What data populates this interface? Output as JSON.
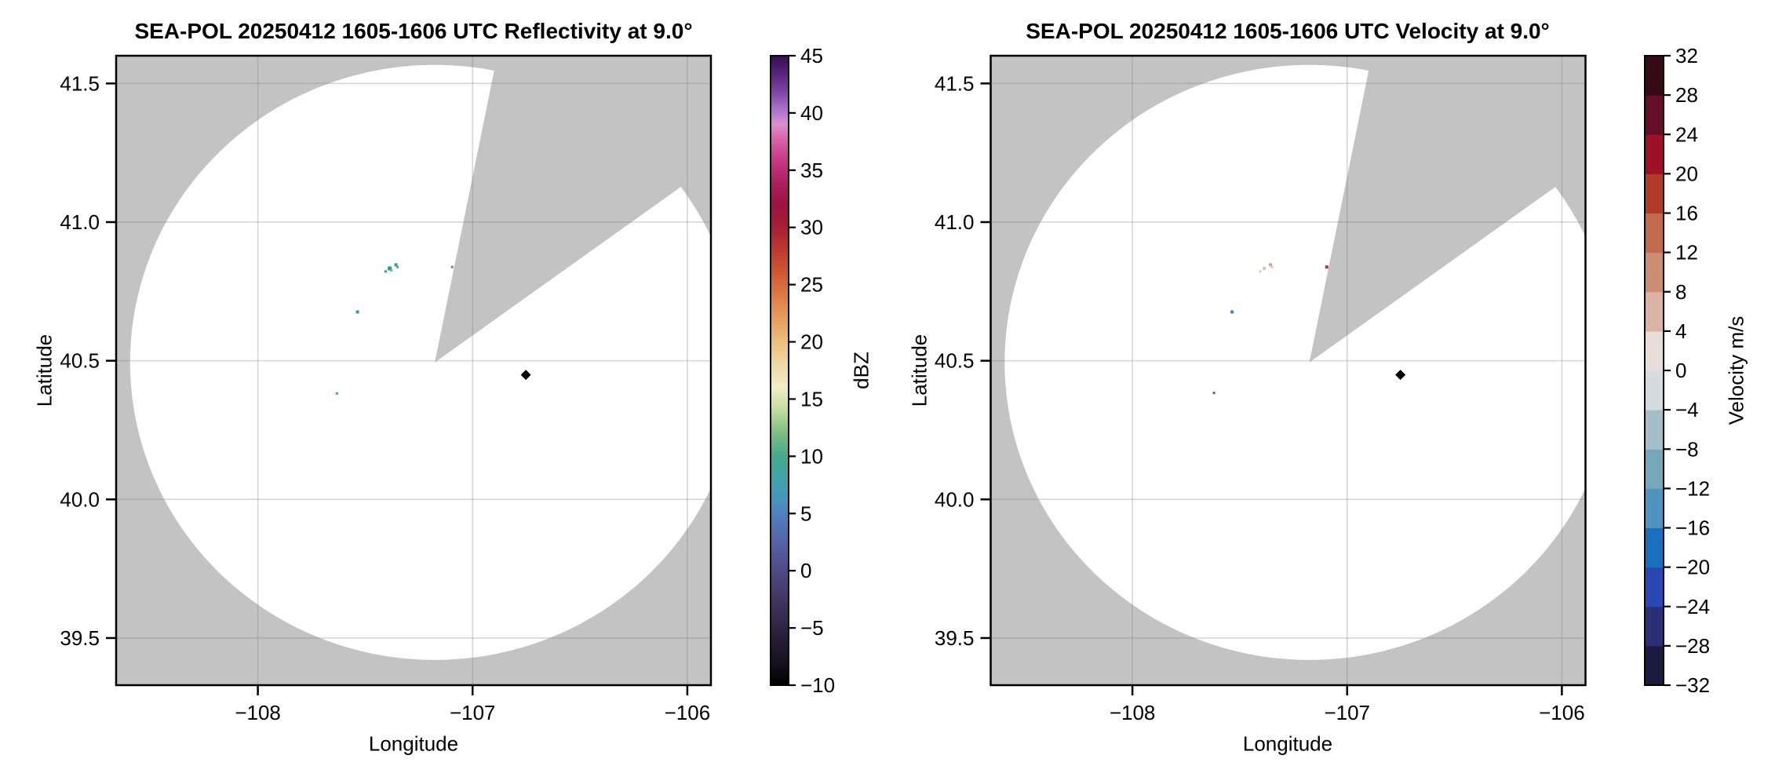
{
  "page": {
    "background": "#ffffff"
  },
  "chart_data": [
    {
      "type": "radar_ppi_pcolormesh",
      "title": "SEA-POL 20250412 1605-1606 UTC Reflectivity at 9.0°",
      "xlabel": "Longitude",
      "ylabel": "Latitude",
      "xlim": [
        -108.66,
        -105.89
      ],
      "ylim": [
        39.33,
        41.6
      ],
      "grid": true,
      "background_color": "#c3c3c3",
      "scanned_area_color": "#ffffff",
      "gridline_color": "rgba(120,120,120,0.30)",
      "xticks": {
        "values": [
          -108,
          -107,
          -106
        ],
        "labels": [
          "−108",
          "−107",
          "−106"
        ]
      },
      "yticks": {
        "values": [
          41.5,
          41.0,
          40.5,
          40.0,
          39.5
        ],
        "labels": [
          "41.5",
          "41.0",
          "40.5",
          "40.0",
          "39.5"
        ]
      },
      "radar": {
        "center_lon": -107.176,
        "center_lat": 40.494,
        "radius_lon_deg": 1.419,
        "radius_lat_deg": 1.073,
        "blocked_sector_azimuth_deg": [
          11.5,
          54.5
        ]
      },
      "colorbar": {
        "label": "dBZ",
        "min": -10,
        "max": 45,
        "style": "continuous",
        "tick_values": [
          45,
          40,
          35,
          30,
          25,
          20,
          15,
          10,
          5,
          0,
          -5,
          -10
        ],
        "tick_labels": [
          "45",
          "40",
          "35",
          "30",
          "25",
          "20",
          "15",
          "10",
          "5",
          "0",
          "−5",
          "−10"
        ],
        "gradient_stops": [
          [
            -10,
            "#000000"
          ],
          [
            -8,
            "#171120"
          ],
          [
            -6,
            "#271d36"
          ],
          [
            -4,
            "#372b50"
          ],
          [
            -2,
            "#453a6a"
          ],
          [
            0,
            "#4e4a86"
          ],
          [
            2,
            "#555da2"
          ],
          [
            4,
            "#5274ba"
          ],
          [
            6,
            "#4792c0"
          ],
          [
            8,
            "#3fa3aa"
          ],
          [
            10,
            "#45aa8e"
          ],
          [
            12,
            "#7bbd80"
          ],
          [
            14,
            "#c1dc9c"
          ],
          [
            16,
            "#f0eec8"
          ],
          [
            18,
            "#efd9a4"
          ],
          [
            20,
            "#ecbf7e"
          ],
          [
            22,
            "#e59e5e"
          ],
          [
            24,
            "#dd7b46"
          ],
          [
            26,
            "#d05834"
          ],
          [
            28,
            "#bd3a2c"
          ],
          [
            30,
            "#a81f36"
          ],
          [
            32,
            "#9c1342"
          ],
          [
            34,
            "#b02062"
          ],
          [
            36,
            "#c93a88"
          ],
          [
            38,
            "#da6cb4"
          ],
          [
            39,
            "#d990cc"
          ],
          [
            40,
            "#b379d0"
          ],
          [
            42,
            "#7a40a2"
          ],
          [
            44,
            "#4c1a6c"
          ],
          [
            45,
            "#381050"
          ]
        ]
      },
      "echoes": [
        {
          "lon": -107.405,
          "lat": 40.822,
          "color": "#2f9c8e",
          "size": 3
        },
        {
          "lon": -107.386,
          "lat": 40.833,
          "color": "#2a9a86",
          "size": 5
        },
        {
          "lon": -107.378,
          "lat": 40.826,
          "color": "#6fb3c8",
          "size": 3
        },
        {
          "lon": -107.357,
          "lat": 40.846,
          "color": "#3fa077",
          "size": 4
        },
        {
          "lon": -107.35,
          "lat": 40.838,
          "color": "#49a8a0",
          "size": 3
        },
        {
          "lon": -107.095,
          "lat": 40.838,
          "color": "#35a09a",
          "size": 3
        },
        {
          "lon": -107.536,
          "lat": 40.676,
          "color": "#2f9c8e",
          "size": 4
        },
        {
          "lon": -107.632,
          "lat": 40.382,
          "color": "#49a89c",
          "size": 3
        }
      ],
      "site_marker": {
        "lon": -106.752,
        "lat": 40.449,
        "shape": "diamond",
        "color": "#000000"
      }
    },
    {
      "type": "radar_ppi_pcolormesh",
      "title": "SEA-POL 20250412 1605-1606 UTC Velocity at 9.0°",
      "xlabel": "Longitude",
      "ylabel": "Latitude",
      "xlim": [
        -108.66,
        -105.89
      ],
      "ylim": [
        39.33,
        41.6
      ],
      "grid": true,
      "background_color": "#c3c3c3",
      "scanned_area_color": "#ffffff",
      "gridline_color": "rgba(120,120,120,0.30)",
      "xticks": {
        "values": [
          -108,
          -107,
          -106
        ],
        "labels": [
          "−108",
          "−107",
          "−106"
        ]
      },
      "yticks": {
        "values": [
          41.5,
          41.0,
          40.5,
          40.0,
          39.5
        ],
        "labels": [
          "41.5",
          "41.0",
          "40.5",
          "40.0",
          "39.5"
        ]
      },
      "radar": {
        "center_lon": -107.176,
        "center_lat": 40.494,
        "radius_lon_deg": 1.419,
        "radius_lat_deg": 1.073,
        "blocked_sector_azimuth_deg": [
          11.5,
          54.5
        ]
      },
      "colorbar": {
        "label": "Velocity m/s",
        "min": -32,
        "max": 32,
        "style": "discrete",
        "tick_values": [
          32,
          28,
          24,
          20,
          16,
          12,
          8,
          4,
          0,
          -4,
          -8,
          -12,
          -16,
          -20,
          -24,
          -28,
          -32
        ],
        "tick_labels": [
          "32",
          "28",
          "24",
          "20",
          "16",
          "12",
          "8",
          "4",
          "0",
          "−4",
          "−8",
          "−12",
          "−16",
          "−20",
          "−24",
          "−28",
          "−32"
        ],
        "segment_colors_bottom_to_top": [
          "#1b1b40",
          "#2b2f75",
          "#2948b3",
          "#1970bd",
          "#4f94c1",
          "#76a8bc",
          "#a5bfc9",
          "#d5dbde",
          "#e7ddd9",
          "#dab3a5",
          "#cb8e75",
          "#c16a4d",
          "#b03b27",
          "#9e1126",
          "#650e28",
          "#330a15"
        ]
      },
      "echoes": [
        {
          "lon": -107.405,
          "lat": 40.822,
          "color": "#d8cfca",
          "size": 3
        },
        {
          "lon": -107.386,
          "lat": 40.833,
          "color": "#cfc5c0",
          "size": 4
        },
        {
          "lon": -107.357,
          "lat": 40.846,
          "color": "#d4a294",
          "size": 4
        },
        {
          "lon": -107.35,
          "lat": 40.838,
          "color": "#e0c4ba",
          "size": 3
        },
        {
          "lon": -107.095,
          "lat": 40.838,
          "color": "#b23530",
          "size": 4
        },
        {
          "lon": -107.536,
          "lat": 40.676,
          "color": "#3e86c6",
          "size": 4
        },
        {
          "lon": -107.62,
          "lat": 40.384,
          "color": "#4a64ae",
          "size": 3
        }
      ],
      "site_marker": {
        "lon": -106.752,
        "lat": 40.449,
        "shape": "diamond",
        "color": "#000000"
      }
    }
  ]
}
